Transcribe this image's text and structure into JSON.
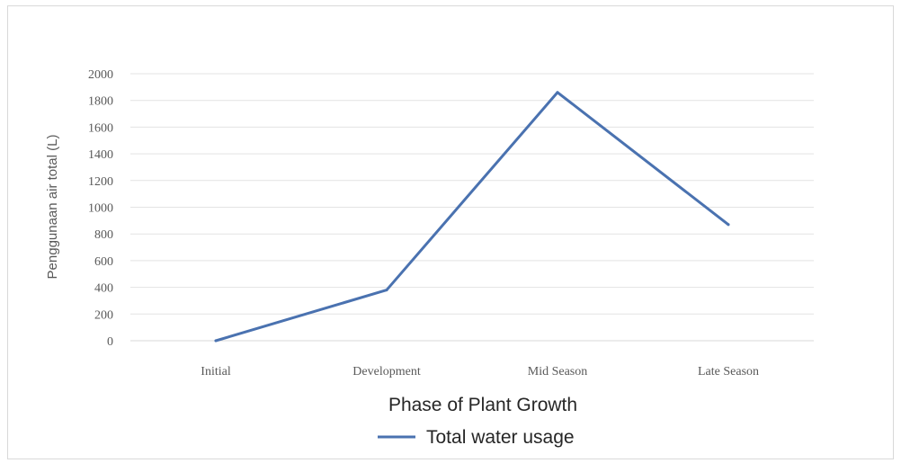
{
  "chart_data": {
    "type": "line",
    "title": "",
    "xlabel": "Phase of Plant Growth",
    "ylabel": "Penggunaan air total (L)",
    "categories": [
      "Initial",
      "Development",
      "Mid Season",
      "Late Season"
    ],
    "series": [
      {
        "name": "Total water usage",
        "values": [
          0,
          380,
          1860,
          870
        ],
        "color": "#4a72b0"
      }
    ],
    "ylim": [
      0,
      2000
    ],
    "yticks": [
      "0",
      "200",
      "400",
      "600",
      "800",
      "1000",
      "1200",
      "1400",
      "1600",
      "1800",
      "2000"
    ],
    "grid": true,
    "legend_position": "bottom"
  }
}
